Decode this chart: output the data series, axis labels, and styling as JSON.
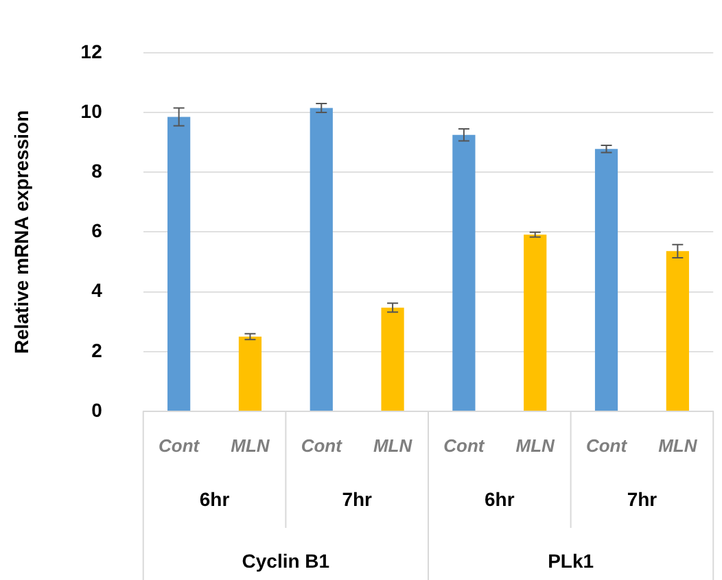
{
  "chart_data": {
    "type": "bar",
    "ylabel": "Relative mRNA expression",
    "categories": [
      "Cont",
      "MLN",
      "Cont",
      "MLN",
      "Cont",
      "MLN",
      "Cont",
      "MLN"
    ],
    "values": [
      9.85,
      2.5,
      10.15,
      3.47,
      9.25,
      5.91,
      8.78,
      5.36
    ],
    "colors": [
      "#5b9bd5",
      "#ffc000",
      "#5b9bd5",
      "#ffc000",
      "#5b9bd5",
      "#ffc000",
      "#5b9bd5",
      "#ffc000"
    ],
    "errors": [
      0.3,
      0.1,
      0.15,
      0.15,
      0.2,
      0.08,
      0.12,
      0.22
    ],
    "annotations": [
      "6hr",
      "7hr",
      "6hr",
      "7hr",
      "Cyclin B1",
      "PLk1"
    ],
    "ylim": [
      0,
      12
    ],
    "yticks": [
      0,
      2,
      4,
      6,
      8,
      10,
      12
    ],
    "grid": "y",
    "legend": false
  }
}
